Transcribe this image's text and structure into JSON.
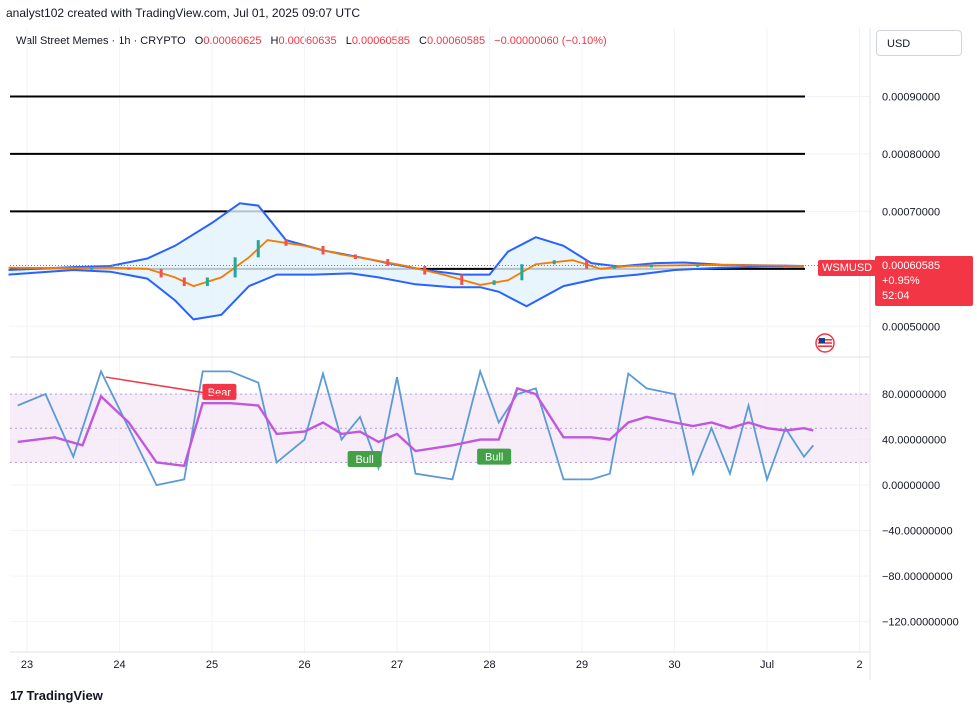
{
  "header": {
    "caption": "analyst102 created with TradingView.com, Jul 01, 2025 09:07 UTC",
    "currency": "USD"
  },
  "legend": {
    "symbol_line": "Wall Street Memes · 1h · CRYPTO",
    "o_label": "O",
    "o_value": "0.00060625",
    "h_label": "H",
    "h_value": "0.00060635",
    "l_label": "L",
    "l_value": "0.00060585",
    "c_label": "C",
    "c_value": "0.00060585",
    "change": "−0.00000060 (−0.10%)"
  },
  "price_tag": {
    "symbol": "WSMUSD",
    "price": "0.00060585",
    "change_pct": "+0.95%",
    "countdown": "52:04"
  },
  "brand": {
    "name": "TradingView",
    "logo": "17"
  },
  "colors": {
    "up": "#26a69a",
    "down": "#ef5350",
    "band": "#2962ff",
    "band_fill": "#e3f2fd",
    "basis": "#f57c00",
    "stoch_k": "#5b9bd5",
    "stoch_d": "#c158dc",
    "bull": "#43a047",
    "bear": "#f23645"
  },
  "chart_data": [
    {
      "type": "candlestick",
      "title": "Wall Street Memes · 1h · CRYPTO",
      "y_ticks": [
        "0.00090000",
        "0.00080000",
        "0.00070000",
        "0.00050000"
      ],
      "y_tick_values": [
        0.0009,
        0.0008,
        0.0007,
        0.0005
      ],
      "ylim": [
        0.00045,
        0.00096
      ],
      "x_ticks": [
        "23",
        "24",
        "25",
        "26",
        "27",
        "28",
        "29",
        "30",
        "Jul",
        "2"
      ],
      "horizontal_levels": [
        0.0009,
        0.0008,
        0.0007,
        0.0006
      ],
      "last_price": 0.00060585,
      "bollinger_upper": [
        [
          22.8,
          0.000598
        ],
        [
          23.5,
          0.000603
        ],
        [
          23.9,
          0.000605
        ],
        [
          24.3,
          0.000618
        ],
        [
          24.6,
          0.00064
        ],
        [
          25.0,
          0.00068
        ],
        [
          25.3,
          0.000714
        ],
        [
          25.5,
          0.00071
        ],
        [
          25.8,
          0.00065
        ],
        [
          26.2,
          0.000632
        ],
        [
          26.6,
          0.00062
        ],
        [
          26.9,
          0.00061
        ],
        [
          27.3,
          0.000598
        ],
        [
          27.7,
          0.00059
        ],
        [
          28.0,
          0.00059
        ],
        [
          28.2,
          0.00063
        ],
        [
          28.5,
          0.000655
        ],
        [
          28.8,
          0.00064
        ],
        [
          29.1,
          0.00061
        ],
        [
          29.4,
          0.000604
        ],
        [
          29.8,
          0.00061
        ],
        [
          30.1,
          0.000611
        ],
        [
          30.5,
          0.000607
        ],
        [
          31.0,
          0.000606
        ],
        [
          31.4,
          0.000605
        ]
      ],
      "bollinger_basis": [
        [
          22.8,
          0.000602
        ],
        [
          23.5,
          0.000601
        ],
        [
          23.9,
          0.000602
        ],
        [
          24.3,
          0.0006
        ],
        [
          24.6,
          0.000585
        ],
        [
          24.8,
          0.00057
        ],
        [
          25.1,
          0.000585
        ],
        [
          25.4,
          0.00062
        ],
        [
          25.6,
          0.00065
        ],
        [
          26.0,
          0.00064
        ],
        [
          26.4,
          0.000625
        ],
        [
          26.7,
          0.000617
        ],
        [
          27.1,
          0.000605
        ],
        [
          27.5,
          0.00059
        ],
        [
          27.9,
          0.000572
        ],
        [
          28.2,
          0.00058
        ],
        [
          28.5,
          0.000608
        ],
        [
          28.9,
          0.000615
        ],
        [
          29.2,
          0.0006
        ],
        [
          29.5,
          0.000605
        ],
        [
          30.0,
          0.000606
        ],
        [
          30.5,
          0.000607
        ],
        [
          31.0,
          0.000606
        ],
        [
          31.4,
          0.000605
        ]
      ],
      "bollinger_lower": [
        [
          22.8,
          0.00059
        ],
        [
          23.5,
          0.000598
        ],
        [
          23.9,
          0.000595
        ],
        [
          24.3,
          0.000583
        ],
        [
          24.6,
          0.000545
        ],
        [
          24.8,
          0.000512
        ],
        [
          25.1,
          0.00052
        ],
        [
          25.4,
          0.00057
        ],
        [
          25.7,
          0.00059
        ],
        [
          26.1,
          0.00059
        ],
        [
          26.5,
          0.000592
        ],
        [
          26.8,
          0.000585
        ],
        [
          27.2,
          0.000573
        ],
        [
          27.6,
          0.000568
        ],
        [
          27.9,
          0.000568
        ],
        [
          28.1,
          0.00056
        ],
        [
          28.4,
          0.000535
        ],
        [
          28.8,
          0.00057
        ],
        [
          29.2,
          0.000584
        ],
        [
          29.6,
          0.00059
        ],
        [
          30.0,
          0.000598
        ],
        [
          30.5,
          0.000602
        ],
        [
          31.0,
          0.000604
        ],
        [
          31.4,
          0.000604
        ]
      ]
    },
    {
      "type": "line",
      "title": "Stochastic RSI",
      "y_ticks": [
        "80.00000000",
        "40.00000000",
        "0.00000000",
        "−40.00000000",
        "−80.00000000",
        "−120.00000000"
      ],
      "y_tick_values": [
        80,
        40,
        0,
        -40,
        -80,
        -120
      ],
      "ylim": [
        -145,
        110
      ],
      "x_ticks": [
        "23",
        "24",
        "25",
        "26",
        "27",
        "28",
        "29",
        "30",
        "Jul",
        "2"
      ],
      "bands": [
        80,
        20
      ],
      "reference_lines": [
        80,
        50,
        20
      ],
      "series": [
        {
          "name": "K",
          "points": [
            [
              22.9,
              70
            ],
            [
              23.2,
              80
            ],
            [
              23.5,
              25
            ],
            [
              23.8,
              100
            ],
            [
              24.1,
              50
            ],
            [
              24.4,
              0
            ],
            [
              24.7,
              5
            ],
            [
              24.9,
              100
            ],
            [
              25.2,
              100
            ],
            [
              25.5,
              90
            ],
            [
              25.7,
              20
            ],
            [
              26.0,
              40
            ],
            [
              26.2,
              98
            ],
            [
              26.4,
              40
            ],
            [
              26.6,
              60
            ],
            [
              26.8,
              15
            ],
            [
              27.0,
              95
            ],
            [
              27.2,
              10
            ],
            [
              27.6,
              5
            ],
            [
              27.9,
              100
            ],
            [
              28.1,
              55
            ],
            [
              28.3,
              80
            ],
            [
              28.5,
              85
            ],
            [
              28.8,
              5
            ],
            [
              29.1,
              5
            ],
            [
              29.3,
              10
            ],
            [
              29.5,
              98
            ],
            [
              29.7,
              85
            ],
            [
              30.0,
              80
            ],
            [
              30.2,
              10
            ],
            [
              30.4,
              50
            ],
            [
              30.6,
              10
            ],
            [
              30.8,
              70
            ],
            [
              31.0,
              5
            ],
            [
              31.2,
              50
            ],
            [
              31.4,
              25
            ],
            [
              31.5,
              35
            ]
          ]
        },
        {
          "name": "D",
          "points": [
            [
              22.9,
              38
            ],
            [
              23.3,
              42
            ],
            [
              23.6,
              35
            ],
            [
              23.8,
              78
            ],
            [
              24.1,
              55
            ],
            [
              24.4,
              20
            ],
            [
              24.7,
              17
            ],
            [
              24.9,
              72
            ],
            [
              25.2,
              72
            ],
            [
              25.5,
              70
            ],
            [
              25.7,
              45
            ],
            [
              26.0,
              47
            ],
            [
              26.2,
              55
            ],
            [
              26.4,
              45
            ],
            [
              26.6,
              47
            ],
            [
              26.8,
              38
            ],
            [
              27.0,
              45
            ],
            [
              27.2,
              30
            ],
            [
              27.6,
              35
            ],
            [
              27.9,
              40
            ],
            [
              28.1,
              40
            ],
            [
              28.3,
              85
            ],
            [
              28.5,
              80
            ],
            [
              28.8,
              42
            ],
            [
              29.1,
              42
            ],
            [
              29.3,
              40
            ],
            [
              29.5,
              55
            ],
            [
              29.7,
              60
            ],
            [
              30.0,
              55
            ],
            [
              30.2,
              52
            ],
            [
              30.4,
              55
            ],
            [
              30.6,
              50
            ],
            [
              30.8,
              55
            ],
            [
              31.0,
              50
            ],
            [
              31.2,
              48
            ],
            [
              31.4,
              50
            ],
            [
              31.5,
              48
            ]
          ]
        }
      ],
      "annotations": [
        {
          "label": "Bear",
          "x": 25.08,
          "y": 82
        },
        {
          "label": "Bull",
          "x": 26.65,
          "y": 23
        },
        {
          "label": "Bull",
          "x": 28.05,
          "y": 25
        }
      ]
    }
  ]
}
